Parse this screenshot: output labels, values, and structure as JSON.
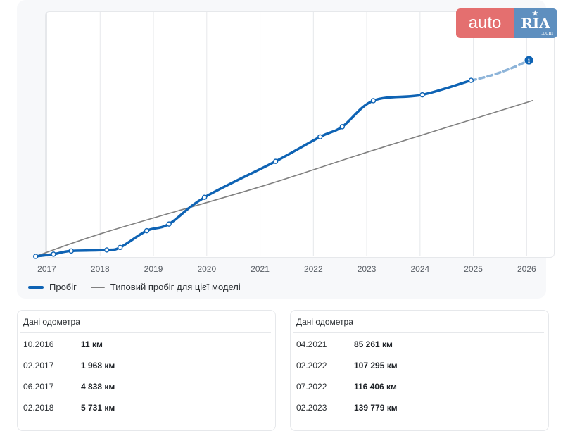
{
  "brand": {
    "logo_auto": "auto",
    "logo_ria": "RIA",
    "logo_com": ".com",
    "color_auto": "#e46f6f",
    "color_ria": "#5e8fbf"
  },
  "colors": {
    "primary": "#0e63b4",
    "typical": "#808080",
    "grid": "#e6e8eb",
    "tick": "#5a5f66"
  },
  "chart_data": {
    "type": "line",
    "xlim": [
      2016.65,
      2026.18
    ],
    "ylim": [
      0,
      220000
    ],
    "x_ticks": [
      "2017",
      "2018",
      "2019",
      "2020",
      "2021",
      "2022",
      "2023",
      "2024",
      "2025",
      "2026"
    ],
    "grid": "vertical",
    "legend_position": "bottom-left",
    "series": [
      {
        "name": "Пробіг",
        "color": "#0e63b4",
        "points": [
          {
            "x": "10.2016",
            "y": 11
          },
          {
            "x": "02.2017",
            "y": 1968
          },
          {
            "x": "06.2017",
            "y": 4838
          },
          {
            "x": "02.2018",
            "y": 5731
          },
          {
            "x": "05.2018",
            "y": 8000
          },
          {
            "x": "11.2018",
            "y": 23000
          },
          {
            "x": "04.2019",
            "y": 29000
          },
          {
            "x": "12.2019",
            "y": 53000
          },
          {
            "x": "04.2021",
            "y": 85261
          },
          {
            "x": "02.2022",
            "y": 107295
          },
          {
            "x": "07.2022",
            "y": 116406
          },
          {
            "x": "02.2023",
            "y": 139779
          },
          {
            "x": "01.2024",
            "y": 145000
          },
          {
            "x": "12.2024",
            "y": 158000
          }
        ],
        "forecast": [
          {
            "x": "12.2024",
            "y": 158000
          },
          {
            "x": "01.2026",
            "y": 176000
          }
        ]
      },
      {
        "name": "Типовий пробіг для цієї моделі",
        "color": "#808080",
        "points": [
          {
            "x": "10.2016",
            "y": 0
          },
          {
            "x": "02.2018",
            "y": 22000
          },
          {
            "x": "01.2021",
            "y": 63000
          },
          {
            "x": "01.2023",
            "y": 94000
          },
          {
            "x": "02.2026",
            "y": 140000
          }
        ]
      }
    ]
  },
  "odometer": {
    "left": {
      "title": "Дані одометра",
      "rows": [
        {
          "date": "10.2016",
          "value": "11 км"
        },
        {
          "date": "02.2017",
          "value": "1 968 км"
        },
        {
          "date": "06.2017",
          "value": "4 838 км"
        },
        {
          "date": "02.2018",
          "value": "5 731 км"
        }
      ]
    },
    "right": {
      "title": "Дані одометра",
      "rows": [
        {
          "date": "04.2021",
          "value": "85 261 км"
        },
        {
          "date": "02.2022",
          "value": "107 295 км"
        },
        {
          "date": "07.2022",
          "value": "116 406 км"
        },
        {
          "date": "02.2023",
          "value": "139 779 км"
        }
      ]
    }
  }
}
